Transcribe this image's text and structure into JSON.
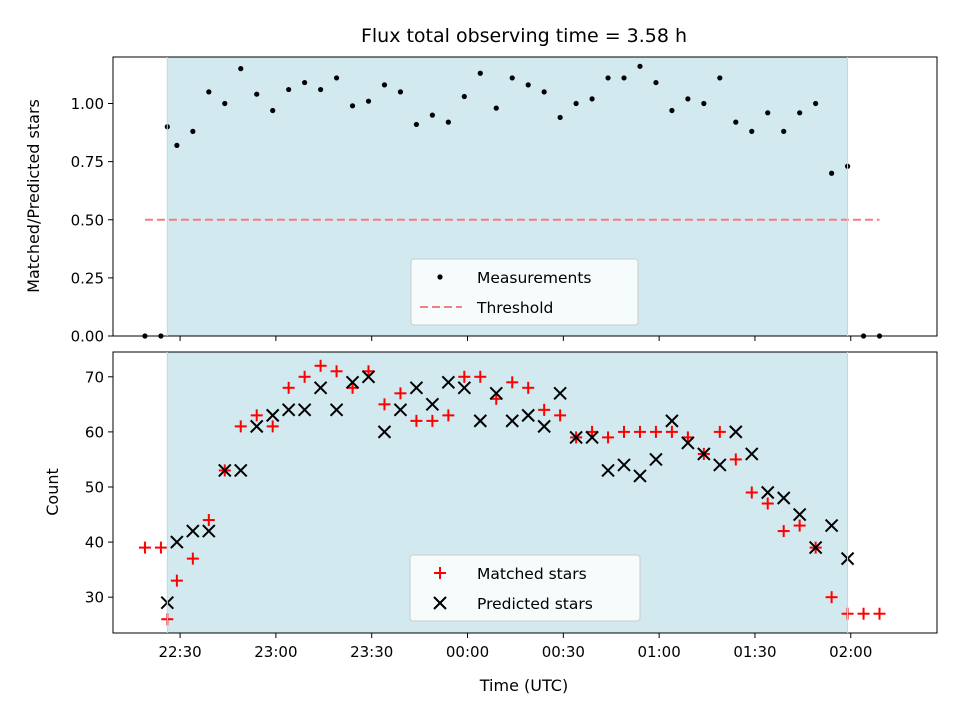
{
  "chart_data": [
    {
      "type": "scatter",
      "title": "Flux total observing time = 3.58 h",
      "ylabel": "Matched/Predicted stars",
      "ylim": [
        0,
        1.2
      ],
      "yticks": [
        "0.00",
        "0.25",
        "0.50",
        "0.75",
        "1.00"
      ],
      "xlim": [
        "22:09",
        "02:27"
      ],
      "shaded_region": {
        "from": "22:26",
        "to": "01:59",
        "color": "#d2e9ef"
      },
      "legend": {
        "placement": "lower-center",
        "entries": [
          "Measurements",
          "Threshold"
        ]
      },
      "threshold": {
        "name": "Threshold",
        "value": 0.5,
        "from": "22:19",
        "to": "02:09",
        "color": "#f08080"
      },
      "series": [
        {
          "name": "Measurements",
          "color": "#000000",
          "points": [
            [
              "22:19",
              0.0
            ],
            [
              "22:24",
              0.0
            ],
            [
              "22:26",
              0.9
            ],
            [
              "22:29",
              0.82
            ],
            [
              "22:34",
              0.88
            ],
            [
              "22:39",
              1.05
            ],
            [
              "22:44",
              1.0
            ],
            [
              "22:49",
              1.15
            ],
            [
              "22:54",
              1.04
            ],
            [
              "22:59",
              0.97
            ],
            [
              "23:04",
              1.06
            ],
            [
              "23:09",
              1.09
            ],
            [
              "23:14",
              1.06
            ],
            [
              "23:19",
              1.11
            ],
            [
              "23:24",
              0.99
            ],
            [
              "23:29",
              1.01
            ],
            [
              "23:34",
              1.08
            ],
            [
              "23:39",
              1.05
            ],
            [
              "23:44",
              0.91
            ],
            [
              "23:49",
              0.95
            ],
            [
              "23:54",
              0.92
            ],
            [
              "23:59",
              1.03
            ],
            [
              "00:04",
              1.13
            ],
            [
              "00:09",
              0.98
            ],
            [
              "00:14",
              1.11
            ],
            [
              "00:19",
              1.08
            ],
            [
              "00:24",
              1.05
            ],
            [
              "00:29",
              0.94
            ],
            [
              "00:34",
              1.0
            ],
            [
              "00:39",
              1.02
            ],
            [
              "00:44",
              1.11
            ],
            [
              "00:49",
              1.11
            ],
            [
              "00:54",
              1.16
            ],
            [
              "00:59",
              1.09
            ],
            [
              "01:04",
              0.97
            ],
            [
              "01:09",
              1.02
            ],
            [
              "01:14",
              1.0
            ],
            [
              "01:19",
              1.11
            ],
            [
              "01:24",
              0.92
            ],
            [
              "01:29",
              0.88
            ],
            [
              "01:34",
              0.96
            ],
            [
              "01:39",
              0.88
            ],
            [
              "01:44",
              0.96
            ],
            [
              "01:49",
              1.0
            ],
            [
              "01:54",
              0.7
            ],
            [
              "01:59",
              0.73
            ],
            [
              "02:04",
              0.0
            ],
            [
              "02:09",
              0.0
            ]
          ]
        }
      ]
    },
    {
      "type": "scatter",
      "xlabel": "Time (UTC)",
      "ylabel": "Count",
      "ylim": [
        23.5,
        74.5
      ],
      "yticks": [
        "30",
        "40",
        "50",
        "60",
        "70"
      ],
      "xlim": [
        "22:09",
        "02:27"
      ],
      "xticks": [
        "22:30",
        "23:00",
        "23:30",
        "00:00",
        "00:30",
        "01:00",
        "01:30",
        "02:00"
      ],
      "shaded_region": {
        "from": "22:26",
        "to": "01:59",
        "color": "#d2e9ef"
      },
      "legend": {
        "placement": "lower-center",
        "entries": [
          "Matched stars",
          "Predicted stars"
        ]
      },
      "series": [
        {
          "name": "Matched stars",
          "color": "#ff0000",
          "marker": "plus",
          "points": [
            [
              "22:19",
              39
            ],
            [
              "22:24",
              39
            ],
            [
              "22:26",
              26
            ],
            [
              "22:29",
              33
            ],
            [
              "22:34",
              37
            ],
            [
              "22:39",
              44
            ],
            [
              "22:44",
              53
            ],
            [
              "22:49",
              61
            ],
            [
              "22:54",
              63
            ],
            [
              "22:59",
              61
            ],
            [
              "23:04",
              68
            ],
            [
              "23:09",
              70
            ],
            [
              "23:14",
              72
            ],
            [
              "23:19",
              71
            ],
            [
              "23:24",
              68
            ],
            [
              "23:29",
              71
            ],
            [
              "23:34",
              65
            ],
            [
              "23:39",
              67
            ],
            [
              "23:44",
              62
            ],
            [
              "23:49",
              62
            ],
            [
              "23:54",
              63
            ],
            [
              "23:59",
              70
            ],
            [
              "00:04",
              70
            ],
            [
              "00:09",
              66
            ],
            [
              "00:14",
              69
            ],
            [
              "00:19",
              68
            ],
            [
              "00:24",
              64
            ],
            [
              "00:29",
              63
            ],
            [
              "00:34",
              59
            ],
            [
              "00:39",
              60
            ],
            [
              "00:44",
              59
            ],
            [
              "00:49",
              60
            ],
            [
              "00:54",
              60
            ],
            [
              "00:59",
              60
            ],
            [
              "01:04",
              60
            ],
            [
              "01:09",
              59
            ],
            [
              "01:14",
              56
            ],
            [
              "01:19",
              60
            ],
            [
              "01:24",
              55
            ],
            [
              "01:29",
              49
            ],
            [
              "01:34",
              47
            ],
            [
              "01:39",
              42
            ],
            [
              "01:44",
              43
            ],
            [
              "01:49",
              39
            ],
            [
              "01:54",
              30
            ],
            [
              "01:59",
              27
            ],
            [
              "02:04",
              27
            ],
            [
              "02:09",
              27
            ]
          ]
        },
        {
          "name": "Predicted stars",
          "color": "#000000",
          "marker": "x",
          "points": [
            [
              "22:26",
              29
            ],
            [
              "22:29",
              40
            ],
            [
              "22:34",
              42
            ],
            [
              "22:39",
              42
            ],
            [
              "22:44",
              53
            ],
            [
              "22:49",
              53
            ],
            [
              "22:54",
              61
            ],
            [
              "22:59",
              63
            ],
            [
              "23:04",
              64
            ],
            [
              "23:09",
              64
            ],
            [
              "23:14",
              68
            ],
            [
              "23:19",
              64
            ],
            [
              "23:24",
              69
            ],
            [
              "23:29",
              70
            ],
            [
              "23:34",
              60
            ],
            [
              "23:39",
              64
            ],
            [
              "23:44",
              68
            ],
            [
              "23:49",
              65
            ],
            [
              "23:54",
              69
            ],
            [
              "23:59",
              68
            ],
            [
              "00:04",
              62
            ],
            [
              "00:09",
              67
            ],
            [
              "00:14",
              62
            ],
            [
              "00:19",
              63
            ],
            [
              "00:24",
              61
            ],
            [
              "00:29",
              67
            ],
            [
              "00:34",
              59
            ],
            [
              "00:39",
              59
            ],
            [
              "00:44",
              53
            ],
            [
              "00:49",
              54
            ],
            [
              "00:54",
              52
            ],
            [
              "00:59",
              55
            ],
            [
              "01:04",
              62
            ],
            [
              "01:09",
              58
            ],
            [
              "01:14",
              56
            ],
            [
              "01:19",
              54
            ],
            [
              "01:24",
              60
            ],
            [
              "01:29",
              56
            ],
            [
              "01:34",
              49
            ],
            [
              "01:39",
              48
            ],
            [
              "01:44",
              45
            ],
            [
              "01:49",
              39
            ],
            [
              "01:54",
              43
            ],
            [
              "01:59",
              37
            ]
          ]
        }
      ]
    }
  ]
}
